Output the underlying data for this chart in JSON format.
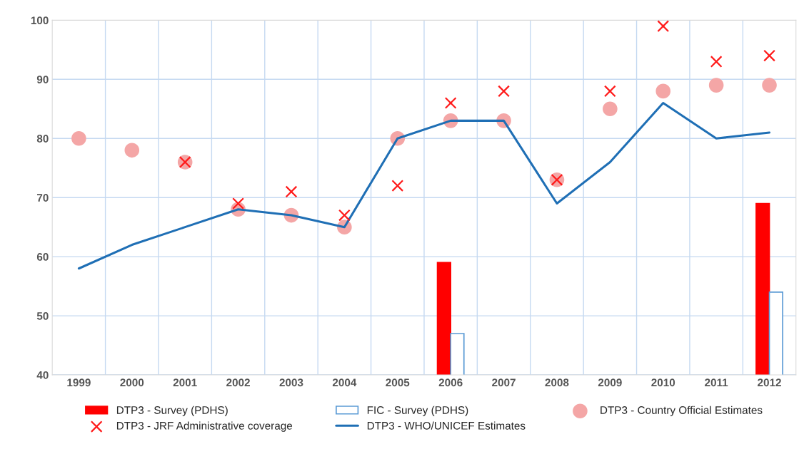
{
  "chart_data": {
    "type": "bar",
    "categories": [
      "1999",
      "2000",
      "2001",
      "2002",
      "2003",
      "2004",
      "2005",
      "2006",
      "2007",
      "2008",
      "2009",
      "2010",
      "2011",
      "2012"
    ],
    "series": [
      {
        "name": "DTP3 - Survey (PDHS)",
        "color": "#ff0000",
        "values": [
          null,
          null,
          null,
          null,
          null,
          null,
          null,
          59,
          null,
          null,
          null,
          null,
          null,
          69
        ]
      },
      {
        "name": "FIC - Survey (PDHS)",
        "color": "#ffffff",
        "values": [
          null,
          null,
          null,
          null,
          null,
          null,
          null,
          47,
          null,
          null,
          null,
          null,
          null,
          54
        ]
      },
      {
        "name": "DTP3 - Country Official Estimates",
        "type": "scatter",
        "marker": "circle",
        "color": "#f4a6a6",
        "values": [
          80,
          78,
          76,
          68,
          67,
          65,
          80,
          83,
          83,
          73,
          85,
          88,
          89,
          89
        ]
      },
      {
        "name": "DTP3 - JRF Administrative coverage",
        "type": "scatter",
        "marker": "cross",
        "color": "#ff1a1a",
        "values": [
          null,
          null,
          76,
          69,
          71,
          67,
          72,
          86,
          88,
          73,
          88,
          99,
          93,
          94
        ]
      },
      {
        "name": "DTP3 - WHO/UNICEF Estimates",
        "type": "line",
        "marker": "none",
        "line_style": "solid",
        "color": "#1f6fb5",
        "values": [
          58,
          62,
          65,
          68,
          67,
          65,
          80,
          83,
          83,
          69,
          76,
          86,
          80,
          81
        ]
      }
    ],
    "ylim": [
      40,
      100
    ],
    "yticks": [
      40,
      50,
      60,
      70,
      80,
      90,
      100
    ],
    "grid": true,
    "legend": "bottom"
  }
}
